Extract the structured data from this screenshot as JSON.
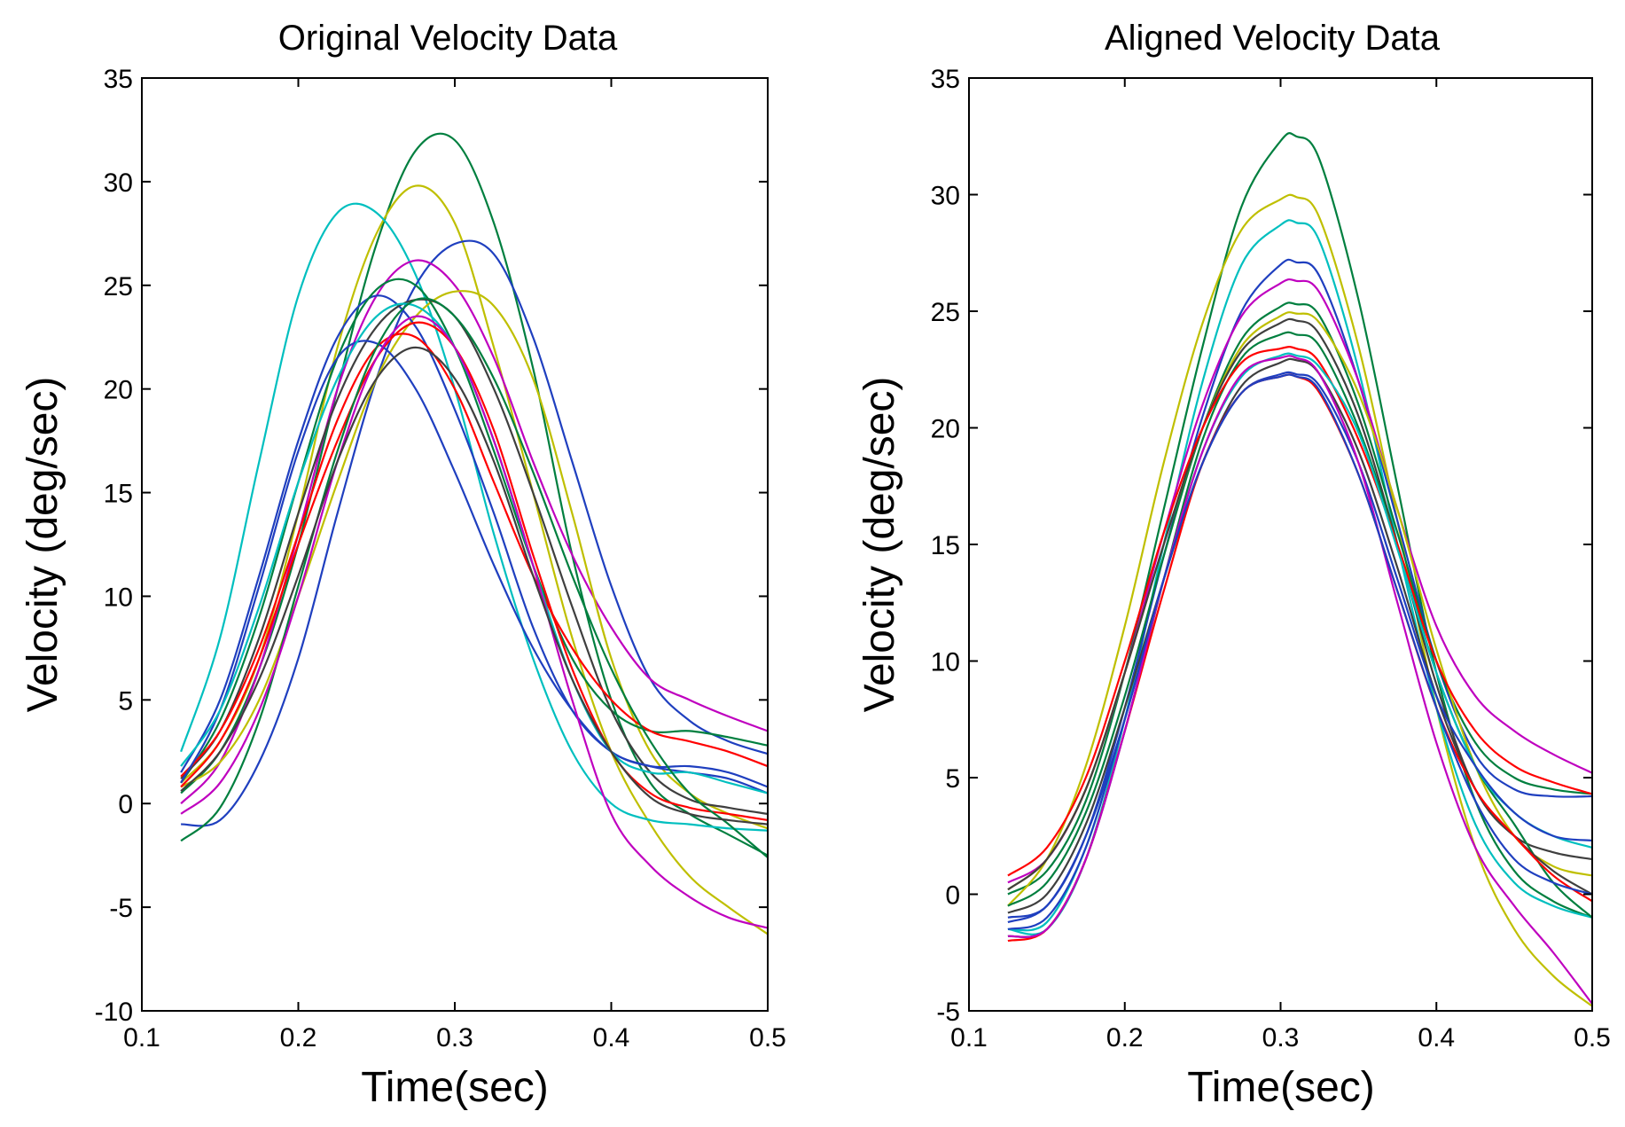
{
  "chart_data": [
    {
      "type": "line",
      "title": "Original Velocity Data",
      "xlabel": "Time(sec)",
      "ylabel": "Velocity (deg/sec)",
      "xlim": [
        0.1,
        0.5
      ],
      "ylim": [
        -10,
        35
      ],
      "xticks": [
        "0.1",
        "0.2",
        "0.3",
        "0.4",
        "0.5"
      ],
      "yticks": [
        "-10",
        "-5",
        "0",
        "5",
        "10",
        "15",
        "20",
        "25",
        "30",
        "35"
      ],
      "x": [
        0.125,
        0.15,
        0.175,
        0.2,
        0.225,
        0.25,
        0.275,
        0.3,
        0.325,
        0.35,
        0.375,
        0.4,
        0.425,
        0.45,
        0.475,
        0.5
      ],
      "series": [
        {
          "name": "green-dark-1",
          "color": "#007f3f",
          "values": [
            0.5,
            2.5,
            6.5,
            12.5,
            20.0,
            27.0,
            31.5,
            32.0,
            28.0,
            21.0,
            12.0,
            5.0,
            1.0,
            -0.5,
            -1.5,
            -2.5
          ]
        },
        {
          "name": "olive-1",
          "color": "#bfbf00",
          "values": [
            1.0,
            3.0,
            7.0,
            14.0,
            22.0,
            27.5,
            29.8,
            28.0,
            22.0,
            15.0,
            8.0,
            2.5,
            -1.0,
            -3.5,
            -5.0,
            -6.3
          ]
        },
        {
          "name": "cyan-1",
          "color": "#00bfbf",
          "values": [
            2.5,
            8.0,
            16.5,
            24.5,
            28.5,
            28.5,
            25.5,
            20.0,
            13.0,
            7.0,
            2.5,
            0.0,
            -0.8,
            -1.0,
            -1.2,
            -1.3
          ]
        },
        {
          "name": "blue-1",
          "color": "#1f3fbf",
          "values": [
            -1.0,
            -0.8,
            2.0,
            7.0,
            14.0,
            20.5,
            25.0,
            27.0,
            26.5,
            22.5,
            16.5,
            10.5,
            6.0,
            4.0,
            3.0,
            2.4
          ]
        },
        {
          "name": "purple-1",
          "color": "#bf00bf",
          "values": [
            0.0,
            2.0,
            6.5,
            13.0,
            20.0,
            24.5,
            26.2,
            25.0,
            21.5,
            16.5,
            12.0,
            8.5,
            6.0,
            5.0,
            4.2,
            3.5
          ]
        },
        {
          "name": "olive-2",
          "color": "#bfbf00",
          "values": [
            0.8,
            2.0,
            5.0,
            10.0,
            15.5,
            20.5,
            23.5,
            24.7,
            24.0,
            20.5,
            14.0,
            7.0,
            2.5,
            0.5,
            -0.5,
            -1.2
          ]
        },
        {
          "name": "blue-2",
          "color": "#1f3fbf",
          "values": [
            1.5,
            5.0,
            11.0,
            17.5,
            22.5,
            24.5,
            23.0,
            19.0,
            14.0,
            8.5,
            4.5,
            2.5,
            1.8,
            1.8,
            1.5,
            0.8
          ]
        },
        {
          "name": "green-dark-2",
          "color": "#007f3f",
          "values": [
            1.0,
            4.0,
            9.0,
            15.5,
            21.5,
            24.8,
            25.0,
            22.0,
            17.0,
            11.5,
            7.0,
            4.5,
            3.5,
            3.5,
            3.2,
            2.8
          ]
        },
        {
          "name": "black-1",
          "color": "#3f3f3f",
          "values": [
            1.2,
            3.5,
            8.0,
            14.0,
            19.5,
            23.0,
            24.3,
            23.5,
            20.0,
            15.0,
            9.5,
            4.5,
            1.5,
            0.2,
            -0.2,
            -0.5
          ]
        },
        {
          "name": "red-1",
          "color": "#ff0000",
          "values": [
            1.3,
            3.5,
            7.5,
            13.0,
            18.5,
            22.0,
            22.5,
            20.0,
            15.5,
            11.0,
            7.5,
            5.0,
            3.5,
            3.0,
            2.5,
            1.8
          ]
        },
        {
          "name": "red-2",
          "color": "#ff0000",
          "values": [
            0.8,
            3.0,
            7.0,
            12.5,
            17.5,
            21.5,
            23.2,
            22.0,
            18.0,
            12.0,
            6.5,
            2.5,
            0.5,
            -0.2,
            -0.5,
            -0.8
          ]
        },
        {
          "name": "blue-3",
          "color": "#1f3fbf",
          "values": [
            1.0,
            4.5,
            10.5,
            17.0,
            21.5,
            22.2,
            20.0,
            16.0,
            11.5,
            7.5,
            4.5,
            2.5,
            1.8,
            1.5,
            1.2,
            0.5
          ]
        },
        {
          "name": "cyan-2",
          "color": "#00bfbf",
          "values": [
            1.8,
            4.5,
            9.5,
            15.5,
            20.5,
            23.5,
            24.0,
            22.0,
            17.5,
            11.5,
            6.0,
            2.5,
            1.5,
            1.5,
            1.0,
            0.5
          ]
        },
        {
          "name": "green-dark-3",
          "color": "#007f3f",
          "values": [
            -1.8,
            -0.2,
            4.0,
            10.5,
            17.0,
            22.0,
            24.3,
            23.5,
            20.5,
            16.0,
            11.0,
            6.5,
            3.0,
            0.5,
            -1.0,
            -2.6
          ]
        },
        {
          "name": "purple-2",
          "color": "#bf00bf",
          "values": [
            -0.5,
            1.0,
            4.5,
            10.0,
            16.5,
            21.5,
            23.5,
            22.0,
            17.5,
            11.5,
            5.0,
            -0.5,
            -3.0,
            -4.5,
            -5.5,
            -6.0
          ]
        },
        {
          "name": "black-2",
          "color": "#3f3f3f",
          "values": [
            0.6,
            2.5,
            6.0,
            11.0,
            16.5,
            20.5,
            22.0,
            20.5,
            16.5,
            11.0,
            6.0,
            2.5,
            0.3,
            -0.5,
            -0.8,
            -1.0
          ]
        }
      ]
    },
    {
      "type": "line",
      "title": "Aligned Velocity Data",
      "xlabel": "Time(sec)",
      "ylabel": "Velocity (deg/sec)",
      "xlim": [
        0.1,
        0.5
      ],
      "ylim": [
        -5,
        35
      ],
      "xticks": [
        "0.1",
        "0.2",
        "0.3",
        "0.4",
        "0.5"
      ],
      "yticks": [
        "-5",
        "0",
        "5",
        "10",
        "15",
        "20",
        "25",
        "30",
        "35"
      ],
      "x": [
        0.125,
        0.15,
        0.175,
        0.2,
        0.225,
        0.25,
        0.275,
        0.3,
        0.31,
        0.325,
        0.35,
        0.375,
        0.4,
        0.425,
        0.45,
        0.475,
        0.5
      ],
      "series": [
        {
          "name": "green-dark-1",
          "color": "#007f3f",
          "values": [
            0.0,
            1.0,
            4.0,
            9.5,
            16.5,
            23.5,
            29.5,
            32.3,
            32.5,
            31.5,
            25.5,
            17.5,
            9.5,
            4.0,
            1.0,
            -0.3,
            -1.0
          ]
        },
        {
          "name": "olive-1",
          "color": "#bfbf00",
          "values": [
            -0.5,
            1.5,
            5.5,
            11.5,
            18.5,
            24.5,
            28.5,
            29.8,
            29.9,
            29.0,
            23.5,
            16.0,
            8.0,
            2.0,
            -1.5,
            -3.5,
            -4.8
          ]
        },
        {
          "name": "cyan-1",
          "color": "#00bfbf",
          "values": [
            -1.5,
            -1.5,
            1.5,
            7.5,
            15.0,
            22.0,
            27.0,
            28.7,
            28.8,
            28.0,
            22.5,
            15.0,
            8.0,
            3.0,
            0.5,
            -0.5,
            -1.0
          ]
        },
        {
          "name": "blue-1",
          "color": "#1f3fbf",
          "values": [
            -1.0,
            -0.5,
            2.5,
            8.0,
            14.5,
            20.5,
            25.0,
            27.0,
            27.1,
            26.5,
            22.0,
            16.0,
            10.0,
            6.0,
            4.5,
            4.2,
            4.2
          ]
        },
        {
          "name": "purple-1",
          "color": "#bf00bf",
          "values": [
            0.5,
            1.5,
            4.5,
            9.5,
            15.5,
            21.0,
            24.8,
            26.2,
            26.3,
            25.8,
            22.0,
            16.5,
            11.5,
            8.5,
            7.0,
            6.0,
            5.2
          ]
        },
        {
          "name": "green-dark-2",
          "color": "#007f3f",
          "values": [
            -0.5,
            0.5,
            3.5,
            8.5,
            14.5,
            20.0,
            23.8,
            25.2,
            25.3,
            24.8,
            21.0,
            15.5,
            10.0,
            6.5,
            5.0,
            4.5,
            4.3
          ]
        },
        {
          "name": "olive-2",
          "color": "#bfbf00",
          "values": [
            0.2,
            1.5,
            4.5,
            9.5,
            15.0,
            20.0,
            23.5,
            24.8,
            24.9,
            24.5,
            21.5,
            16.5,
            10.5,
            5.5,
            2.5,
            1.2,
            0.8
          ]
        },
        {
          "name": "black-1",
          "color": "#3f3f3f",
          "values": [
            0.2,
            1.5,
            4.5,
            9.5,
            15.0,
            20.0,
            23.3,
            24.5,
            24.6,
            24.0,
            20.5,
            15.0,
            9.0,
            4.5,
            2.5,
            1.8,
            1.5
          ]
        },
        {
          "name": "green-dark-3",
          "color": "#007f3f",
          "values": [
            -1.8,
            -1.5,
            1.5,
            7.0,
            13.5,
            19.5,
            23.0,
            24.0,
            24.0,
            23.5,
            20.0,
            15.0,
            9.5,
            5.5,
            3.0,
            0.5,
            -1.0
          ]
        },
        {
          "name": "red-1",
          "color": "#ff0000",
          "values": [
            0.8,
            2.0,
            5.0,
            10.0,
            15.5,
            20.0,
            22.8,
            23.4,
            23.4,
            22.8,
            19.5,
            15.0,
            10.0,
            7.0,
            5.5,
            4.8,
            4.3
          ]
        },
        {
          "name": "cyan-2",
          "color": "#00bfbf",
          "values": [
            -1.5,
            -1.2,
            2.0,
            7.5,
            13.5,
            19.0,
            22.2,
            23.1,
            23.1,
            22.6,
            19.8,
            14.8,
            9.5,
            5.5,
            3.5,
            2.5,
            2.0
          ]
        },
        {
          "name": "black-2",
          "color": "#3f3f3f",
          "values": [
            -0.8,
            0.0,
            3.0,
            8.0,
            13.5,
            18.5,
            21.8,
            22.8,
            22.9,
            22.3,
            19.0,
            14.0,
            8.5,
            4.5,
            2.5,
            1.0,
            0.0
          ]
        },
        {
          "name": "blue-2",
          "color": "#1f3fbf",
          "values": [
            -1.2,
            -0.5,
            2.5,
            7.5,
            13.5,
            18.5,
            21.5,
            22.3,
            22.3,
            21.8,
            18.5,
            13.5,
            8.5,
            5.5,
            3.5,
            2.5,
            2.3
          ]
        },
        {
          "name": "red-2",
          "color": "#ff0000",
          "values": [
            -2.0,
            -1.5,
            1.5,
            7.0,
            13.0,
            18.5,
            21.5,
            22.2,
            22.2,
            21.5,
            18.0,
            13.0,
            8.0,
            4.5,
            2.5,
            0.8,
            -0.3
          ]
        },
        {
          "name": "purple-2",
          "color": "#bf00bf",
          "values": [
            -1.8,
            -1.5,
            1.5,
            7.0,
            13.5,
            19.0,
            22.3,
            23.0,
            23.0,
            22.3,
            18.5,
            12.5,
            6.5,
            2.0,
            -0.5,
            -2.5,
            -4.7
          ]
        },
        {
          "name": "blue-3",
          "color": "#1f3fbf",
          "values": [
            -1.5,
            -1.0,
            2.0,
            7.5,
            13.5,
            18.5,
            21.5,
            22.2,
            22.2,
            21.6,
            18.0,
            13.0,
            8.0,
            4.0,
            1.5,
            0.5,
            0.0
          ]
        }
      ]
    }
  ]
}
